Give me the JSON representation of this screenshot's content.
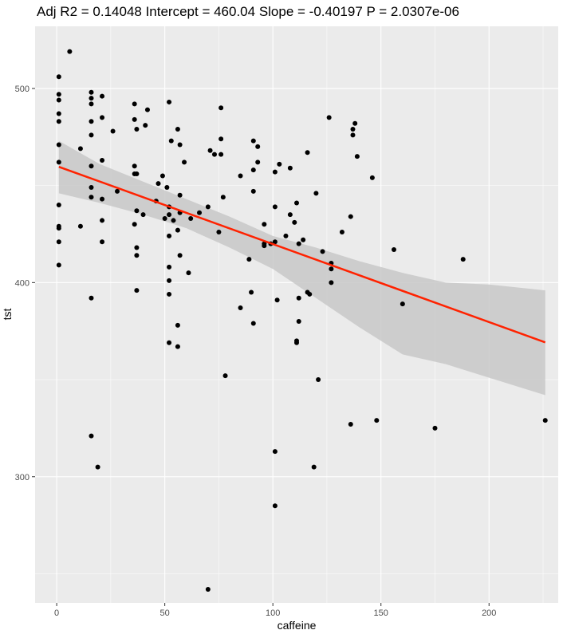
{
  "chart_data": {
    "type": "scatter",
    "title": "Adj R2 =  0.14048 Intercept = 460.04  Slope = -0.40197  P = 2.0307e-06",
    "xlabel": "caffeine",
    "ylabel": "tst",
    "xlim": [
      -10,
      232
    ],
    "ylim": [
      235,
      532
    ],
    "x_ticks": [
      0,
      50,
      100,
      150,
      200
    ],
    "y_ticks": [
      300,
      400,
      500
    ],
    "grid": true,
    "legend": "none",
    "colors": {
      "panel": "#ebebeb",
      "grid_major": "#ffffff",
      "points": "#000000",
      "fit_line": "#ff2200",
      "ribbon": "#c8c8c8"
    },
    "points": [
      [
        1,
        506
      ],
      [
        1,
        497
      ],
      [
        1,
        494
      ],
      [
        1,
        487
      ],
      [
        1,
        483
      ],
      [
        1,
        471
      ],
      [
        1,
        462
      ],
      [
        1,
        440
      ],
      [
        1,
        429
      ],
      [
        1,
        428
      ],
      [
        1,
        421
      ],
      [
        1,
        409
      ],
      [
        6,
        519
      ],
      [
        11,
        469
      ],
      [
        11,
        429
      ],
      [
        16,
        498
      ],
      [
        16,
        495
      ],
      [
        16,
        492
      ],
      [
        16,
        483
      ],
      [
        16,
        476
      ],
      [
        16,
        460
      ],
      [
        16,
        449
      ],
      [
        16,
        444
      ],
      [
        16,
        392
      ],
      [
        16,
        321
      ],
      [
        19,
        305
      ],
      [
        21,
        496
      ],
      [
        21,
        485
      ],
      [
        21,
        463
      ],
      [
        21,
        443
      ],
      [
        21,
        432
      ],
      [
        21,
        421
      ],
      [
        26,
        478
      ],
      [
        28,
        447
      ],
      [
        36,
        492
      ],
      [
        36,
        484
      ],
      [
        36,
        460
      ],
      [
        36,
        456
      ],
      [
        36,
        430
      ],
      [
        37,
        479
      ],
      [
        37,
        456
      ],
      [
        37,
        437
      ],
      [
        37,
        418
      ],
      [
        37,
        414
      ],
      [
        37,
        396
      ],
      [
        40,
        435
      ],
      [
        41,
        481
      ],
      [
        42,
        489
      ],
      [
        46,
        442
      ],
      [
        47,
        451
      ],
      [
        49,
        455
      ],
      [
        50,
        433
      ],
      [
        51,
        449
      ],
      [
        52,
        493
      ],
      [
        52,
        439
      ],
      [
        52,
        435
      ],
      [
        52,
        424
      ],
      [
        52,
        408
      ],
      [
        52,
        401
      ],
      [
        52,
        394
      ],
      [
        52,
        369
      ],
      [
        53,
        473
      ],
      [
        54,
        432
      ],
      [
        56,
        479
      ],
      [
        56,
        427
      ],
      [
        56,
        378
      ],
      [
        56,
        367
      ],
      [
        57,
        471
      ],
      [
        57,
        445
      ],
      [
        57,
        436
      ],
      [
        57,
        414
      ],
      [
        59,
        462
      ],
      [
        61,
        405
      ],
      [
        62,
        433
      ],
      [
        66,
        436
      ],
      [
        70,
        439
      ],
      [
        70,
        242
      ],
      [
        71,
        468
      ],
      [
        73,
        466
      ],
      [
        75,
        426
      ],
      [
        76,
        490
      ],
      [
        76,
        474
      ],
      [
        76,
        466
      ],
      [
        77,
        444
      ],
      [
        78,
        352
      ],
      [
        85,
        387
      ],
      [
        85,
        455
      ],
      [
        89,
        412
      ],
      [
        90,
        395
      ],
      [
        91,
        473
      ],
      [
        91,
        458
      ],
      [
        91,
        447
      ],
      [
        91,
        379
      ],
      [
        93,
        470
      ],
      [
        93,
        462
      ],
      [
        96,
        430
      ],
      [
        96,
        419
      ],
      [
        96,
        420
      ],
      [
        99,
        420
      ],
      [
        101,
        457
      ],
      [
        101,
        439
      ],
      [
        101,
        421
      ],
      [
        101,
        313
      ],
      [
        101,
        285
      ],
      [
        102,
        391
      ],
      [
        103,
        461
      ],
      [
        106,
        424
      ],
      [
        108,
        459
      ],
      [
        108,
        435
      ],
      [
        110,
        431
      ],
      [
        111,
        441
      ],
      [
        111,
        370
      ],
      [
        111,
        369
      ],
      [
        112,
        420
      ],
      [
        112,
        392
      ],
      [
        112,
        380
      ],
      [
        114,
        422
      ],
      [
        116,
        467
      ],
      [
        116,
        395
      ],
      [
        117,
        394
      ],
      [
        119,
        305
      ],
      [
        120,
        446
      ],
      [
        121,
        350
      ],
      [
        123,
        416
      ],
      [
        126,
        485
      ],
      [
        127,
        410
      ],
      [
        127,
        407
      ],
      [
        127,
        400
      ],
      [
        132,
        426
      ],
      [
        136,
        434
      ],
      [
        136,
        327
      ],
      [
        137,
        476
      ],
      [
        137,
        479
      ],
      [
        138,
        482
      ],
      [
        139,
        465
      ],
      [
        146,
        454
      ],
      [
        148,
        329
      ],
      [
        156,
        417
      ],
      [
        160,
        389
      ],
      [
        175,
        325
      ],
      [
        188,
        412
      ],
      [
        226,
        329
      ]
    ],
    "fit": {
      "intercept": 460.04,
      "slope": -0.40197,
      "x_range": [
        1,
        226
      ],
      "band": [
        [
          1,
          473,
          446
        ],
        [
          20,
          461,
          441
        ],
        [
          40,
          452,
          435
        ],
        [
          60,
          443,
          428
        ],
        [
          80,
          434,
          418
        ],
        [
          100,
          424,
          407
        ],
        [
          120,
          418,
          392
        ],
        [
          140,
          411,
          377
        ],
        [
          160,
          405,
          363
        ],
        [
          180,
          400,
          358
        ],
        [
          200,
          399,
          351
        ],
        [
          226,
          396,
          342
        ]
      ]
    }
  }
}
